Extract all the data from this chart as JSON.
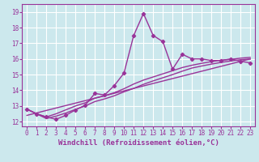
{
  "bg_color": "#cce8ed",
  "grid_color": "#ffffff",
  "line_color": "#993399",
  "line_width": 1.0,
  "marker": "D",
  "marker_size": 2.2,
  "xlabel": "Windchill (Refroidissement éolien,°C)",
  "xlabel_fontsize": 6.5,
  "xlim": [
    -0.5,
    23.5
  ],
  "ylim": [
    11.7,
    19.5
  ],
  "xticks": [
    0,
    1,
    2,
    3,
    4,
    5,
    6,
    7,
    8,
    9,
    10,
    11,
    12,
    13,
    14,
    15,
    16,
    17,
    18,
    19,
    20,
    21,
    22,
    23
  ],
  "yticks": [
    12,
    13,
    14,
    15,
    16,
    17,
    18,
    19
  ],
  "tick_fontsize": 5.5,
  "series1_x": [
    0,
    1,
    2,
    3,
    4,
    5,
    6,
    7,
    8,
    9,
    10,
    11,
    12,
    13,
    14,
    15,
    16,
    17,
    18,
    19,
    20,
    21,
    22,
    23
  ],
  "series1_y": [
    12.8,
    12.5,
    12.3,
    12.15,
    12.4,
    12.75,
    13.05,
    13.8,
    13.7,
    14.3,
    15.1,
    17.5,
    18.9,
    17.5,
    17.1,
    15.35,
    16.3,
    16.0,
    16.0,
    15.9,
    15.9,
    16.0,
    15.85,
    15.75
  ],
  "series2_x": [
    0,
    1,
    2,
    3,
    4,
    5,
    6,
    7,
    8,
    9,
    10,
    11,
    12,
    13,
    14,
    15,
    16,
    17,
    18,
    19,
    20,
    21,
    22,
    23
  ],
  "series2_y": [
    12.8,
    12.5,
    12.3,
    12.5,
    12.75,
    13.0,
    13.2,
    13.5,
    13.65,
    13.85,
    14.1,
    14.4,
    14.65,
    14.85,
    15.05,
    15.25,
    15.45,
    15.6,
    15.72,
    15.83,
    15.92,
    15.97,
    16.05,
    16.1
  ],
  "series3_x": [
    0,
    1,
    2,
    3,
    4,
    5,
    6,
    7,
    8,
    9,
    10,
    11,
    12,
    13,
    14,
    15,
    16,
    17,
    18,
    19,
    20,
    21,
    22,
    23
  ],
  "series3_y": [
    12.8,
    12.5,
    12.2,
    12.35,
    12.55,
    12.78,
    13.0,
    13.28,
    13.45,
    13.65,
    13.9,
    14.12,
    14.38,
    14.6,
    14.8,
    15.0,
    15.22,
    15.42,
    15.55,
    15.67,
    15.78,
    15.87,
    15.95,
    16.0
  ],
  "series4_x": [
    0,
    23
  ],
  "series4_y": [
    12.4,
    16.0
  ]
}
